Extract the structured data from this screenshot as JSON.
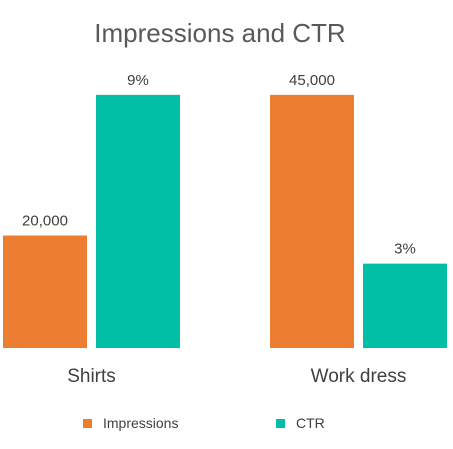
{
  "chart_data": {
    "type": "bar",
    "title": "Impressions and CTR",
    "categories": [
      "Shirts",
      "Work dress"
    ],
    "series": [
      {
        "name": "Impressions",
        "values": [
          20000,
          45000
        ],
        "labels": [
          "20,000",
          "45,000"
        ],
        "color": "#ED7D31"
      },
      {
        "name": "CTR",
        "values": [
          0.09,
          0.03
        ],
        "labels": [
          "9%",
          "3%"
        ],
        "color": "#00BFA5"
      }
    ],
    "axes": {
      "y_primary": {
        "series": "Impressions",
        "min": 0,
        "max": 48000
      },
      "y_secondary": {
        "series": "CTR",
        "min": 0,
        "max": 0.096
      }
    },
    "grid": false,
    "legend": "bottom"
  }
}
